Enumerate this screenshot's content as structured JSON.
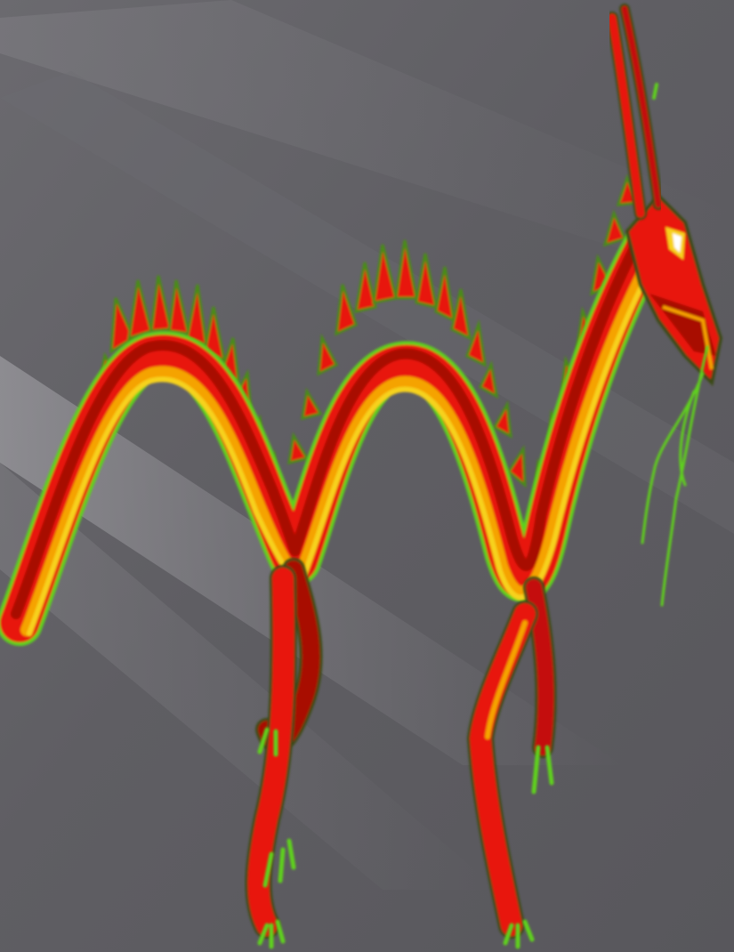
{
  "scene": {
    "subject": "dragon-illustration",
    "palette": {
      "background_dark": "#545357",
      "background_light": "#8a898e",
      "body_red": "#e8120a",
      "body_dark_red": "#a80d05",
      "belly_orange": "#f5a300",
      "belly_yellow": "#f7d21c",
      "spine_green": "#5fd11d",
      "outline_dark": "#3a4a12"
    }
  }
}
